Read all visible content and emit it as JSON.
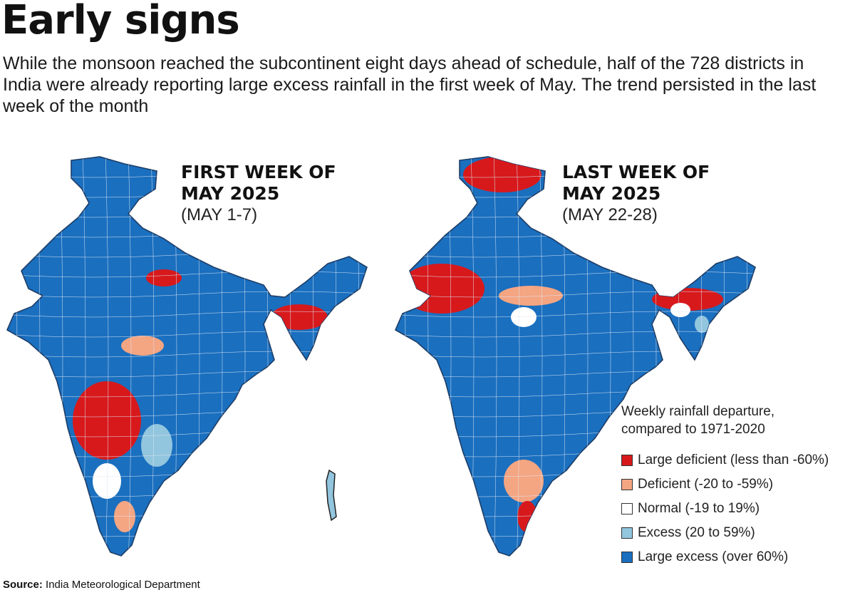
{
  "header": {
    "title": "Early signs",
    "subtitle": "While the monsoon reached the subcontinent eight days ahead of schedule, half of the 728 districts in India were already reporting large excess rainfall in the first week of May. The trend persisted in the last week of the month"
  },
  "maps": [
    {
      "heading_line1": "FIRST WEEK OF",
      "heading_line2": "MAY 2025",
      "range": "(MAY 1-7)",
      "dominant": "large_excess",
      "patches": [
        "large_deficient",
        "deficient",
        "excess",
        "normal"
      ]
    },
    {
      "heading_line1": "LAST WEEK OF",
      "heading_line2": "MAY 2025",
      "range": "(MAY 22-28)",
      "dominant": "large_excess",
      "patches": [
        "large_deficient",
        "deficient",
        "normal",
        "excess"
      ]
    }
  ],
  "legend": {
    "title_line1": "Weekly rainfall departure,",
    "title_line2": "compared to 1971-2020",
    "items": [
      {
        "key": "large_deficient",
        "label": "Large deficient (less than -60%)",
        "color": "#d7191c"
      },
      {
        "key": "deficient",
        "label": "Deficient (-20 to -59%)",
        "color": "#f4a582"
      },
      {
        "key": "normal",
        "label": "Normal (-19 to 19%)",
        "color": "#ffffff"
      },
      {
        "key": "excess",
        "label": "Excess (20 to 59%)",
        "color": "#92c5de"
      },
      {
        "key": "large_excess",
        "label": "Large excess (over 60%)",
        "color": "#1a6fbf"
      }
    ]
  },
  "colors": {
    "no_data": "#bdbdbd",
    "border": "#1e3d66"
  },
  "source": {
    "label": "Source:",
    "text": "India Meteorological Department"
  }
}
